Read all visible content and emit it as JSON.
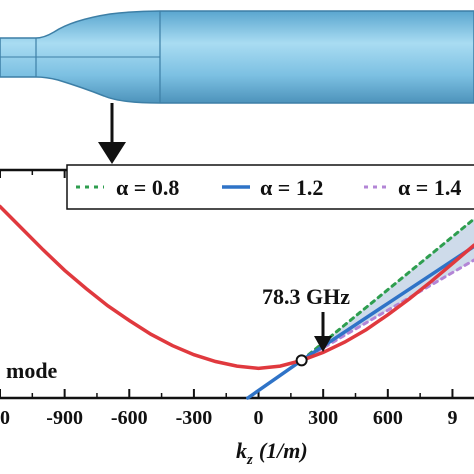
{
  "colors": {
    "curve": "#e0393e",
    "alpha_08": "#2e9e4f",
    "alpha_12": "#2f73c7",
    "alpha_14": "#b385d6",
    "band": "#c5d5e6",
    "waveguide": "#7fbfe0",
    "waveguide_edge": "#3d7fa6"
  },
  "annotation": {
    "label": "78.3 GHz"
  },
  "mode_label": "mode",
  "chart_data": {
    "type": "line",
    "xlabel_main": "k",
    "xlabel_sub": "z",
    "xlabel_unit": "(1/m)",
    "x_ticks": [
      "-900",
      "-600",
      "-300",
      "0",
      "300",
      "600"
    ],
    "x_tick_partial_left": "00",
    "x_tick_partial_right": "9",
    "xlim": [
      -1200,
      1000
    ],
    "ylim": [
      75,
      95
    ],
    "grid": false,
    "legend_position": "top",
    "legend": [
      {
        "label": "α = 0.8",
        "style": "dotted",
        "color": "#2e9e4f"
      },
      {
        "label": "α = 1.2",
        "style": "solid",
        "color": "#2f73c7"
      },
      {
        "label": "α = 1.4",
        "style": "dotted",
        "color": "#b385d6"
      }
    ],
    "series": [
      {
        "style": "solid",
        "x": [
          -1200,
          -1100,
          -1000,
          -900,
          -800,
          -700,
          -600,
          -500,
          -400,
          -300,
          -200,
          -100,
          0,
          100,
          200,
          300,
          400,
          500,
          600,
          700,
          800,
          900,
          1000
        ],
        "y": [
          91.8,
          89.9,
          88.0,
          86.2,
          84.6,
          83.1,
          81.8,
          80.6,
          79.6,
          78.8,
          78.2,
          77.8,
          77.6,
          77.8,
          78.3,
          79.0,
          79.9,
          81.0,
          82.3,
          83.7,
          85.2,
          86.8,
          88.4
        ]
      },
      {
        "style": "solid",
        "x": [
          -50,
          200,
          400,
          600,
          800,
          1000
        ],
        "y": [
          75.0,
          78.3,
          80.8,
          83.3,
          85.8,
          88.3
        ]
      },
      {
        "style": "dotted",
        "x": [
          200,
          400,
          600,
          800,
          1000
        ],
        "y": [
          78.3,
          81.4,
          84.5,
          87.6,
          90.7
        ]
      },
      {
        "style": "dotted",
        "x": [
          200,
          400,
          600,
          800,
          1000
        ],
        "y": [
          78.3,
          80.5,
          82.7,
          84.9,
          87.1
        ]
      }
    ],
    "marked_point": {
      "x": 200,
      "y": 78.3
    }
  }
}
